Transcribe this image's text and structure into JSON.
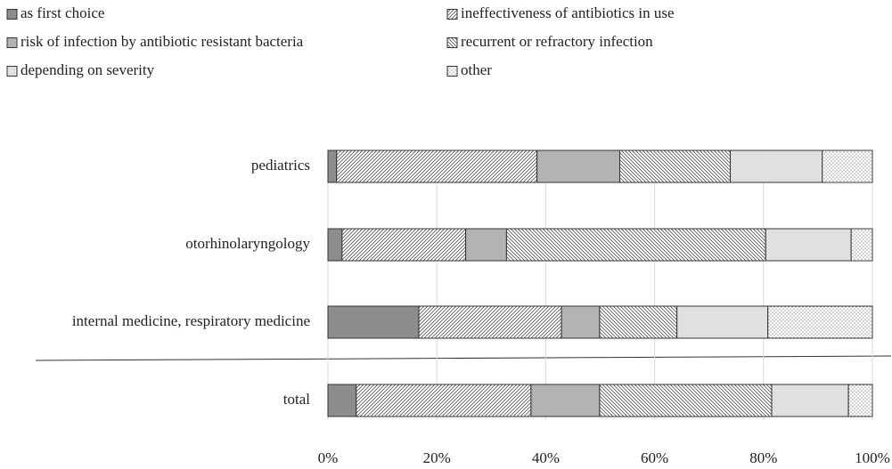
{
  "chart_data": {
    "type": "stacked-barh",
    "categories": [
      "pediatrics",
      "otorhinolaryngology",
      "internal medicine, respiratory medicine",
      "total"
    ],
    "series": [
      {
        "name": "as first choice",
        "color": "#8c8c8c",
        "pattern": "solid",
        "values": [
          1.6,
          2.6,
          16.7,
          5.2
        ]
      },
      {
        "name": "ineffectiveness of antibiotics in use",
        "color": "#555555",
        "pattern": "hatch-forward",
        "values": [
          36.8,
          22.7,
          26.2,
          32.1
        ]
      },
      {
        "name": "risk of infection by antibiotic resistant bacteria",
        "color": "#b3b3b3",
        "pattern": "solid",
        "values": [
          15.2,
          7.5,
          7.0,
          12.6
        ]
      },
      {
        "name": "recurrent or refractory infection",
        "color": "#555555",
        "pattern": "hatch-back",
        "values": [
          20.3,
          47.6,
          14.2,
          31.6
        ]
      },
      {
        "name": "depending on severity",
        "color": "#e0e0e0",
        "pattern": "solid",
        "values": [
          16.9,
          15.7,
          16.7,
          14.1
        ]
      },
      {
        "name": "other",
        "color": "#666666",
        "pattern": "dots",
        "values": [
          9.2,
          3.9,
          19.2,
          4.4
        ]
      }
    ],
    "xlim": [
      0,
      100
    ],
    "xticks": [
      {
        "value": 0,
        "label": "0%"
      },
      {
        "value": 20,
        "label": "20%"
      },
      {
        "value": 40,
        "label": "40%"
      },
      {
        "value": 60,
        "label": "60%"
      },
      {
        "value": 80,
        "label": "80%"
      },
      {
        "value": 100,
        "label": "100%"
      }
    ],
    "grid": true
  }
}
